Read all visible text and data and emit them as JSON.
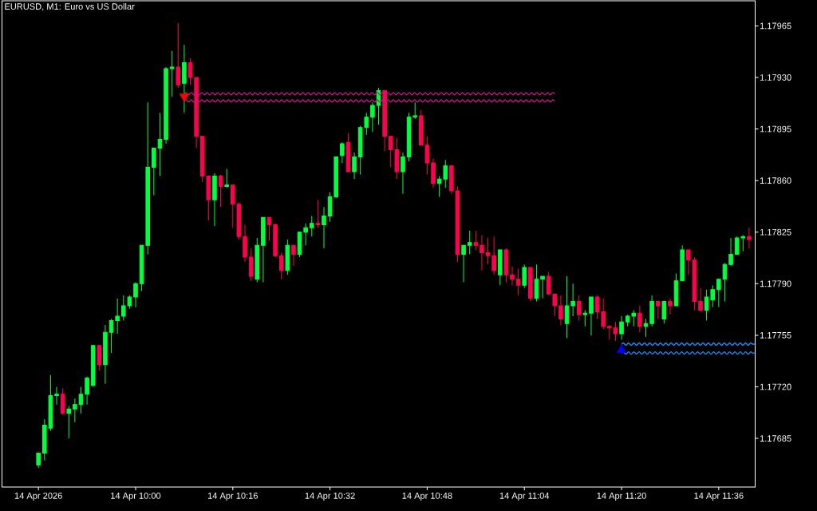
{
  "chart_data": {
    "type": "candlestick",
    "title": "EURUSD, M1:  Euro vs US Dollar",
    "xlim": [
      "2026-04-14T09:38",
      "2026-04-14T11:42"
    ],
    "ylim": [
      1.17652,
      1.17982
    ],
    "xticks": [
      {
        "value": "2026-04-14T09:44",
        "label": "14 Apr 2026"
      },
      {
        "value": "2026-04-14T10:00",
        "label": "14 Apr 10:00"
      },
      {
        "value": "2026-04-14T10:16",
        "label": "14 Apr 10:16"
      },
      {
        "value": "2026-04-14T10:32",
        "label": "14 Apr 10:32"
      },
      {
        "value": "2026-04-14T10:48",
        "label": "14 Apr 10:48"
      },
      {
        "value": "2026-04-14T11:04",
        "label": "14 Apr 11:04"
      },
      {
        "value": "2026-04-14T11:20",
        "label": "14 Apr 11:20"
      },
      {
        "value": "2026-04-14T11:36",
        "label": "14 Apr 11:36"
      }
    ],
    "yticks": [
      1.17685,
      {
        "value": 1.1772,
        "label": "1.17720"
      },
      1.17755,
      {
        "value": 1.1779,
        "label": "1.17790"
      },
      1.17825,
      {
        "value": 1.1786,
        "label": "1.17860"
      },
      1.17895,
      {
        "value": 1.1793,
        "label": "1.17930"
      },
      1.17965
    ],
    "x": [
      "2026-04-14T09:44",
      "2026-04-14T09:45",
      "2026-04-14T09:46",
      "2026-04-14T09:47",
      "2026-04-14T09:48",
      "2026-04-14T09:49",
      "2026-04-14T09:50",
      "2026-04-14T09:51",
      "2026-04-14T09:52",
      "2026-04-14T09:53",
      "2026-04-14T09:54",
      "2026-04-14T09:55",
      "2026-04-14T09:56",
      "2026-04-14T09:57",
      "2026-04-14T09:58",
      "2026-04-14T09:59",
      "2026-04-14T10:00",
      "2026-04-14T10:01",
      "2026-04-14T10:02",
      "2026-04-14T10:03",
      "2026-04-14T10:04",
      "2026-04-14T10:05",
      "2026-04-14T10:06",
      "2026-04-14T10:07",
      "2026-04-14T10:08",
      "2026-04-14T10:09",
      "2026-04-14T10:10",
      "2026-04-14T10:11",
      "2026-04-14T10:12",
      "2026-04-14T10:13",
      "2026-04-14T10:14",
      "2026-04-14T10:15",
      "2026-04-14T10:16",
      "2026-04-14T10:17",
      "2026-04-14T10:18",
      "2026-04-14T10:19",
      "2026-04-14T10:20",
      "2026-04-14T10:21",
      "2026-04-14T10:22",
      "2026-04-14T10:23",
      "2026-04-14T10:24",
      "2026-04-14T10:25",
      "2026-04-14T10:26",
      "2026-04-14T10:27",
      "2026-04-14T10:28",
      "2026-04-14T10:29",
      "2026-04-14T10:30",
      "2026-04-14T10:31",
      "2026-04-14T10:32",
      "2026-04-14T10:33",
      "2026-04-14T10:34",
      "2026-04-14T10:35",
      "2026-04-14T10:36",
      "2026-04-14T10:37",
      "2026-04-14T10:38",
      "2026-04-14T10:39",
      "2026-04-14T10:40",
      "2026-04-14T10:41",
      "2026-04-14T10:42",
      "2026-04-14T10:43",
      "2026-04-14T10:44",
      "2026-04-14T10:45",
      "2026-04-14T10:46",
      "2026-04-14T10:47",
      "2026-04-14T10:48",
      "2026-04-14T10:49",
      "2026-04-14T10:50",
      "2026-04-14T10:51",
      "2026-04-14T10:52",
      "2026-04-14T10:53",
      "2026-04-14T10:54",
      "2026-04-14T10:55",
      "2026-04-14T10:56",
      "2026-04-14T10:57",
      "2026-04-14T10:58",
      "2026-04-14T10:59",
      "2026-04-14T11:00",
      "2026-04-14T11:01",
      "2026-04-14T11:02",
      "2026-04-14T11:03",
      "2026-04-14T11:04",
      "2026-04-14T11:05",
      "2026-04-14T11:06",
      "2026-04-14T11:07",
      "2026-04-14T11:08",
      "2026-04-14T11:09",
      "2026-04-14T11:10",
      "2026-04-14T11:11",
      "2026-04-14T11:12",
      "2026-04-14T11:13",
      "2026-04-14T11:14",
      "2026-04-14T11:15",
      "2026-04-14T11:16",
      "2026-04-14T11:17",
      "2026-04-14T11:18",
      "2026-04-14T11:19",
      "2026-04-14T11:20",
      "2026-04-14T11:21",
      "2026-04-14T11:22",
      "2026-04-14T11:23",
      "2026-04-14T11:24",
      "2026-04-14T11:25",
      "2026-04-14T11:26",
      "2026-04-14T11:27",
      "2026-04-14T11:28",
      "2026-04-14T11:29",
      "2026-04-14T11:30",
      "2026-04-14T11:31",
      "2026-04-14T11:32",
      "2026-04-14T11:33",
      "2026-04-14T11:34",
      "2026-04-14T11:35",
      "2026-04-14T11:36",
      "2026-04-14T11:37",
      "2026-04-14T11:38",
      "2026-04-14T11:39",
      "2026-04-14T11:40",
      "2026-04-14T11:41"
    ],
    "ohlc": [
      [
        1.17667,
        1.17675,
        1.17665,
        1.17675
      ],
      [
        1.17675,
        1.17698,
        1.1767,
        1.17694
      ],
      [
        1.17692,
        1.17728,
        1.1769,
        1.17714
      ],
      [
        1.17714,
        1.1772,
        1.17708,
        1.17715
      ],
      [
        1.17715,
        1.17719,
        1.17701,
        1.17702
      ],
      [
        1.17702,
        1.17707,
        1.17685,
        1.17705
      ],
      [
        1.17705,
        1.17712,
        1.17696,
        1.17708
      ],
      [
        1.17708,
        1.1772,
        1.17702,
        1.17715
      ],
      [
        1.17715,
        1.17727,
        1.17708,
        1.17726
      ],
      [
        1.17721,
        1.17748,
        1.1772,
        1.17748
      ],
      [
        1.17748,
        1.17748,
        1.17731,
        1.17735
      ],
      [
        1.17735,
        1.17762,
        1.17722,
        1.17757
      ],
      [
        1.17757,
        1.17766,
        1.17743,
        1.17765
      ],
      [
        1.17765,
        1.1778,
        1.17756,
        1.17768
      ],
      [
        1.17768,
        1.17782,
        1.17765,
        1.17775
      ],
      [
        1.17775,
        1.17782,
        1.17773,
        1.17781
      ],
      [
        1.17781,
        1.17791,
        1.17774,
        1.1779
      ],
      [
        1.1779,
        1.17816,
        1.17785,
        1.17816
      ],
      [
        1.17816,
        1.17913,
        1.1781,
        1.17869
      ],
      [
        1.17869,
        1.17882,
        1.1785,
        1.17882
      ],
      [
        1.17882,
        1.17906,
        1.17863,
        1.17888
      ],
      [
        1.17888,
        1.17937,
        1.17885,
        1.17936
      ],
      [
        1.17936,
        1.17948,
        1.17917,
        1.17937
      ],
      [
        1.17937,
        1.17967,
        1.17923,
        1.17925
      ],
      [
        1.17926,
        1.17952,
        1.17906,
        1.1794
      ],
      [
        1.1794,
        1.17943,
        1.17925,
        1.1793
      ],
      [
        1.1793,
        1.1793,
        1.17882,
        1.1789
      ],
      [
        1.1789,
        1.1789,
        1.17859,
        1.17863
      ],
      [
        1.17863,
        1.17863,
        1.17833,
        1.17847
      ],
      [
        1.17847,
        1.17865,
        1.17829,
        1.17863
      ],
      [
        1.17863,
        1.17864,
        1.17842,
        1.17856
      ],
      [
        1.17856,
        1.17868,
        1.17855,
        1.17857
      ],
      [
        1.17857,
        1.17857,
        1.17828,
        1.17844
      ],
      [
        1.17844,
        1.17845,
        1.1782,
        1.17822
      ],
      [
        1.17822,
        1.1783,
        1.17805,
        1.17808
      ],
      [
        1.17808,
        1.17814,
        1.17792,
        1.17795
      ],
      [
        1.17793,
        1.17821,
        1.17791,
        1.17816
      ],
      [
        1.17816,
        1.17835,
        1.17791,
        1.17835
      ],
      [
        1.17835,
        1.17835,
        1.17819,
        1.1783
      ],
      [
        1.1783,
        1.17831,
        1.17808,
        1.17809
      ],
      [
        1.17809,
        1.17811,
        1.17793,
        1.17799
      ],
      [
        1.17799,
        1.1782,
        1.17796,
        1.17816
      ],
      [
        1.17816,
        1.17816,
        1.17802,
        1.1781
      ],
      [
        1.1781,
        1.17825,
        1.17808,
        1.17825
      ],
      [
        1.17825,
        1.17831,
        1.17816,
        1.17828
      ],
      [
        1.17828,
        1.17836,
        1.17822,
        1.17831
      ],
      [
        1.17831,
        1.17847,
        1.17828,
        1.1783
      ],
      [
        1.1783,
        1.17842,
        1.17814,
        1.17836
      ],
      [
        1.17836,
        1.17852,
        1.17832,
        1.17849
      ],
      [
        1.17849,
        1.17876,
        1.17848,
        1.17876
      ],
      [
        1.17877,
        1.17886,
        1.17872,
        1.17885
      ],
      [
        1.17886,
        1.17892,
        1.17866,
        1.17866
      ],
      [
        1.17866,
        1.17879,
        1.17861,
        1.17876
      ],
      [
        1.17876,
        1.17897,
        1.17864,
        1.17896
      ],
      [
        1.17896,
        1.17906,
        1.17891,
        1.17903
      ],
      [
        1.17903,
        1.17913,
        1.17893,
        1.17911
      ],
      [
        1.17911,
        1.17923,
        1.17898,
        1.17921
      ],
      [
        1.17921,
        1.17921,
        1.1788,
        1.1789
      ],
      [
        1.1789,
        1.1789,
        1.17869,
        1.17881
      ],
      [
        1.17881,
        1.17889,
        1.17861,
        1.17866
      ],
      [
        1.17866,
        1.17879,
        1.17851,
        1.17876
      ],
      [
        1.17876,
        1.17906,
        1.17873,
        1.17903
      ],
      [
        1.17903,
        1.17913,
        1.17902,
        1.17904
      ],
      [
        1.17904,
        1.17908,
        1.17884,
        1.17884
      ],
      [
        1.17884,
        1.1789,
        1.17864,
        1.17872
      ],
      [
        1.17872,
        1.17875,
        1.17855,
        1.17858
      ],
      [
        1.17858,
        1.17863,
        1.17849,
        1.17861
      ],
      [
        1.17861,
        1.17874,
        1.17855,
        1.1787
      ],
      [
        1.1787,
        1.1787,
        1.17851,
        1.17853
      ],
      [
        1.17853,
        1.17856,
        1.17805,
        1.1781
      ],
      [
        1.1781,
        1.17816,
        1.17791,
        1.17816
      ],
      [
        1.17816,
        1.17826,
        1.1781,
        1.17818
      ],
      [
        1.17818,
        1.17826,
        1.17813,
        1.17816
      ],
      [
        1.17816,
        1.17823,
        1.17799,
        1.17811
      ],
      [
        1.17811,
        1.17821,
        1.17803,
        1.17809
      ],
      [
        1.17809,
        1.17822,
        1.17796,
        1.17799
      ],
      [
        1.17796,
        1.17813,
        1.17789,
        1.17813
      ],
      [
        1.17813,
        1.17814,
        1.17791,
        1.17796
      ],
      [
        1.17796,
        1.17802,
        1.17789,
        1.17793
      ],
      [
        1.17793,
        1.178,
        1.17782,
        1.17789
      ],
      [
        1.17789,
        1.17803,
        1.17787,
        1.17801
      ],
      [
        1.17801,
        1.17801,
        1.17778,
        1.1778
      ],
      [
        1.1778,
        1.17803,
        1.17778,
        1.17793
      ],
      [
        1.17793,
        1.17795,
        1.1778,
        1.17795
      ],
      [
        1.17795,
        1.17798,
        1.17783,
        1.17783
      ],
      [
        1.17783,
        1.17783,
        1.17768,
        1.17775
      ],
      [
        1.17775,
        1.17782,
        1.17762,
        1.17766
      ],
      [
        1.17763,
        1.17795,
        1.17753,
        1.17775
      ],
      [
        1.17775,
        1.1779,
        1.17768,
        1.17778
      ],
      [
        1.17778,
        1.17782,
        1.17765,
        1.17769
      ],
      [
        1.17769,
        1.17772,
        1.17761,
        1.1777
      ],
      [
        1.1777,
        1.17781,
        1.17755,
        1.17781
      ],
      [
        1.17781,
        1.17782,
        1.17766,
        1.17771
      ],
      [
        1.17771,
        1.1778,
        1.17759,
        1.17761
      ],
      [
        1.17761,
        1.17762,
        1.17752,
        1.1776
      ],
      [
        1.1776,
        1.17764,
        1.17751,
        1.17756
      ],
      [
        1.17756,
        1.17768,
        1.17752,
        1.17764
      ],
      [
        1.17764,
        1.17769,
        1.17761,
        1.17768
      ],
      [
        1.17768,
        1.17772,
        1.17761,
        1.1777
      ],
      [
        1.1777,
        1.17775,
        1.17757,
        1.17761
      ],
      [
        1.17761,
        1.17766,
        1.17754,
        1.17763
      ],
      [
        1.17763,
        1.17782,
        1.17761,
        1.17778
      ],
      [
        1.17778,
        1.17778,
        1.17766,
        1.17775
      ],
      [
        1.17766,
        1.17778,
        1.17763,
        1.17778
      ],
      [
        1.17778,
        1.1778,
        1.17769,
        1.17775
      ],
      [
        1.17775,
        1.17797,
        1.17775,
        1.17792
      ],
      [
        1.17792,
        1.17816,
        1.17792,
        1.17813
      ],
      [
        1.17813,
        1.17813,
        1.17796,
        1.17806
      ],
      [
        1.17806,
        1.17808,
        1.17772,
        1.17778
      ],
      [
        1.17778,
        1.17787,
        1.17771,
        1.17772
      ],
      [
        1.17772,
        1.17786,
        1.17765,
        1.17781
      ],
      [
        1.17779,
        1.17789,
        1.17774,
        1.17786
      ],
      [
        1.17786,
        1.17793,
        1.17774,
        1.17793
      ],
      [
        1.17793,
        1.17804,
        1.17778,
        1.17803
      ],
      [
        1.17803,
        1.17821,
        1.17802,
        1.1781
      ],
      [
        1.1781,
        1.17822,
        1.1781,
        1.17821
      ],
      [
        1.17821,
        1.17823,
        1.17812,
        1.17822
      ],
      [
        1.17822,
        1.17828,
        1.17814,
        1.1782
      ]
    ],
    "colors": [
      "#00ff40",
      "#00ff40",
      "#00ff40",
      "#00ff40",
      "#ff0050",
      "#00ff40",
      "#00ff40",
      "#00ff40",
      "#00ff40",
      "#00ff40",
      "#ff0050",
      "#00ff40",
      "#00ff40",
      "#00ff40",
      "#00ff40",
      "#00ff40",
      "#00ff40",
      "#00ff40",
      "#00ff40",
      "#00ff40",
      "#00ff40",
      "#00ff40",
      "#00ff40",
      "#ff0050",
      "#00ff40",
      "#ff0050",
      "#ff0050",
      "#ff0050",
      "#ff0050",
      "#00ff40",
      "#ff0050",
      "#00ff40",
      "#ff0050",
      "#ff0050",
      "#ff0050",
      "#ff0050",
      "#00ff40",
      "#00ff40",
      "#ff0050",
      "#ff0050",
      "#ff0050",
      "#00ff40",
      "#ff0050",
      "#00ff40",
      "#00ff40",
      "#00ff40",
      "#ff0050",
      "#00ff40",
      "#00ff40",
      "#00ff40",
      "#00ff40",
      "#ff0050",
      "#00ff40",
      "#00ff40",
      "#00ff40",
      "#00ff40",
      "#00ff40",
      "#ff0050",
      "#ff0050",
      "#ff0050",
      "#00ff40",
      "#00ff40",
      "#00ff40",
      "#ff0050",
      "#ff0050",
      "#ff0050",
      "#00ff40",
      "#00ff40",
      "#ff0050",
      "#ff0050",
      "#00ff40",
      "#00ff40",
      "#ff0050",
      "#ff0050",
      "#ff0050",
      "#ff0050",
      "#00ff40",
      "#ff0050",
      "#ff0050",
      "#ff0050",
      "#00ff40",
      "#ff0050",
      "#00ff40",
      "#00ff40",
      "#ff0050",
      "#ff0050",
      "#ff0050",
      "#00ff40",
      "#00ff40",
      "#ff0050",
      "#00ff40",
      "#00ff40",
      "#ff0050",
      "#ff0050",
      "#ff0050",
      "#ff0050",
      "#00ff40",
      "#00ff40",
      "#00ff40",
      "#ff0050",
      "#00ff40",
      "#00ff40",
      "#ff0050",
      "#00ff40",
      "#ff0050",
      "#00ff40",
      "#00ff40",
      "#ff0050",
      "#ff0050",
      "#ff0050",
      "#00ff40",
      "#00ff40",
      "#00ff40",
      "#00ff40",
      "#00ff40",
      "#00ff40",
      "#00ff40",
      "#ff0050"
    ],
    "series": [
      {
        "type": "line",
        "x": [
          "2026-04-14T10:08",
          "2026-04-14T11:09"
        ],
        "values": [
          1.17919,
          1.17919
        ],
        "color": "#c71585"
      },
      {
        "type": "line",
        "x": [
          "2026-04-14T10:08",
          "2026-04-14T11:09"
        ],
        "values": [
          1.17914,
          1.17914
        ],
        "color": "#c71585"
      },
      {
        "type": "line",
        "x": [
          "2026-04-14T11:20",
          "2026-04-14T11:42"
        ],
        "values": [
          1.17749,
          1.17749
        ],
        "color": "#1e90ff"
      },
      {
        "type": "line",
        "x": [
          "2026-04-14T11:20",
          "2026-04-14T11:42"
        ],
        "values": [
          1.17743,
          1.17743
        ],
        "color": "#1e90ff"
      },
      {
        "type": "scatter",
        "x": [
          "2026-04-14T10:08"
        ],
        "values": [
          1.17917
        ],
        "color": "#ff0000",
        "marker": "triangle-down"
      },
      {
        "type": "scatter",
        "x": [
          "2026-04-14T11:20"
        ],
        "values": [
          1.17745
        ],
        "color": "#0000ff",
        "marker": "triangle"
      }
    ]
  }
}
